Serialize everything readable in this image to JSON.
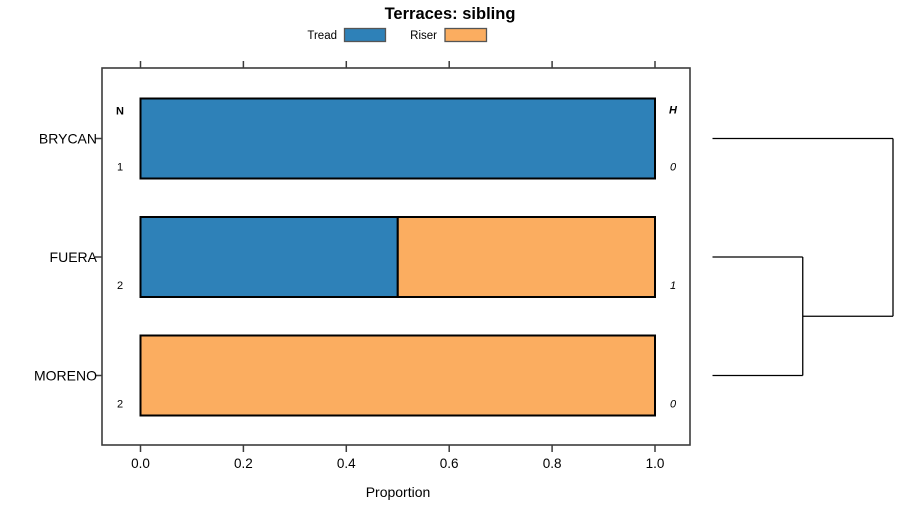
{
  "chart": {
    "title": "Terraces: sibling",
    "xlabel": "Proportion"
  },
  "chart_data": {
    "type": "bar",
    "orientation": "horizontal",
    "stacked": true,
    "title": "Terraces: sibling",
    "xlabel": "Proportion",
    "xlim": [
      0,
      1
    ],
    "x_ticks": [
      0.0,
      0.2,
      0.4,
      0.6,
      0.8,
      1.0
    ],
    "x_tick_labels": [
      "0.0",
      "0.2",
      "0.4",
      "0.6",
      "0.8",
      "1.0"
    ],
    "categories": [
      "BRYCAN",
      "FUERA",
      "MORENO"
    ],
    "series": [
      {
        "name": "Tread",
        "color": "#2E81B8",
        "values": [
          1.0,
          0.5,
          0.0
        ]
      },
      {
        "name": "Riser",
        "color": "#FBAD60",
        "values": [
          0.0,
          0.5,
          1.0
        ]
      }
    ],
    "annotation_columns": {
      "left": {
        "header": "N",
        "values": [
          "1",
          "2",
          "2"
        ]
      },
      "right": {
        "header": "H",
        "values": [
          "0",
          "1",
          "0"
        ],
        "italic": true
      }
    },
    "legend": {
      "position": "top",
      "entries": [
        "Tread",
        "Riser"
      ]
    },
    "grid": false,
    "dendrogram": {
      "side": "right",
      "merges": [
        {
          "children": [
            {
              "leaf": 1
            },
            {
              "leaf": 2
            }
          ],
          "height": 1
        },
        {
          "children": [
            {
              "leaf": 0
            },
            {
              "merge": 0
            }
          ],
          "height": 2
        }
      ]
    },
    "colors": {
      "bar_border": "#000000",
      "frame": "#3c3c3c",
      "dendrogram_line": "#000000",
      "legend_swatch_border": "#555555"
    }
  }
}
